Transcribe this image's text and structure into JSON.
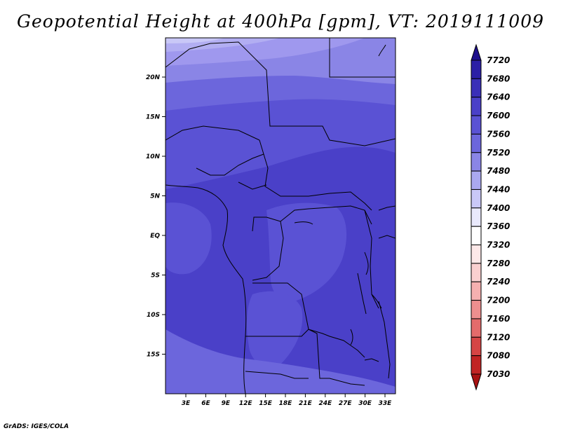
{
  "title": "Geopotential Height at 400hPa [gpm], VT: 2019111009",
  "credit": "GrADS: IGES/COLA",
  "map": {
    "region": "Central Africa",
    "lat_labels": [
      "20N",
      "15N",
      "10N",
      "5N",
      "EQ",
      "5S",
      "10S",
      "15S"
    ],
    "lon_labels": [
      "3E",
      "6E",
      "9E",
      "12E",
      "15E",
      "18E",
      "21E",
      "24E",
      "27E",
      "30E",
      "33E"
    ]
  },
  "colorbar": {
    "labels": [
      "7720",
      "7680",
      "7640",
      "7600",
      "7560",
      "7520",
      "7480",
      "7440",
      "7400",
      "7360",
      "7320",
      "7280",
      "7240",
      "7200",
      "7160",
      "7120",
      "7080",
      "7030"
    ],
    "colors": [
      "#1e0f8c",
      "#2b1fa6",
      "#3a2fb8",
      "#4a40c8",
      "#5a52d4",
      "#6c66dc",
      "#8a85e6",
      "#aaa8f0",
      "#c9c8f7",
      "#e9e9fc",
      "#ffffff",
      "#fde8e8",
      "#fad0d0",
      "#f5b0b0",
      "#ee8f8f",
      "#e36b6b",
      "#d54545",
      "#c12424",
      "#a81212"
    ]
  }
}
